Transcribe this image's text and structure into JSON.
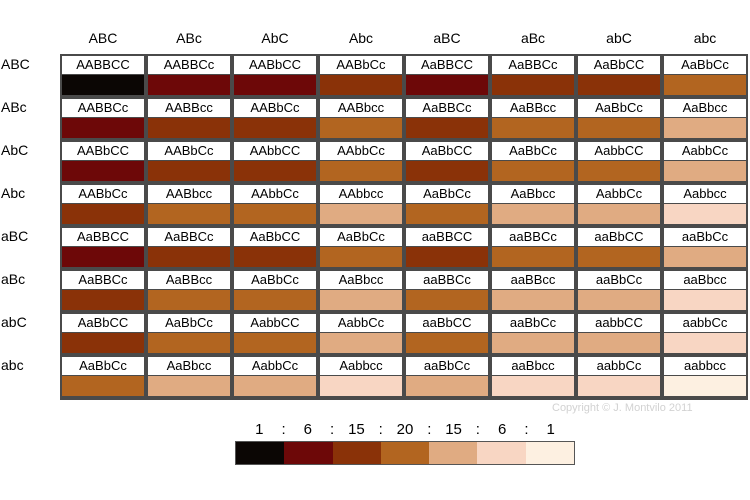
{
  "columns": [
    "ABC",
    "ABc",
    "AbC",
    "Abc",
    "aBC",
    "aBc",
    "abC",
    "abc"
  ],
  "rows": [
    "ABC",
    "ABc",
    "AbC",
    "Abc",
    "aBC",
    "aBc",
    "abC",
    "abc"
  ],
  "colors": {
    "c0": "#0b0604",
    "c1": "#6d0808",
    "c2": "#8a3208",
    "c3": "#b26520",
    "c4": "#e0ab82",
    "c5": "#f8d6c3",
    "c6": "#fdf0e1"
  },
  "grid": [
    [
      {
        "genotype": "AABBCC",
        "dominant": 6
      },
      {
        "genotype": "AABBCc",
        "dominant": 5
      },
      {
        "genotype": "AABbCC",
        "dominant": 5
      },
      {
        "genotype": "AABbCc",
        "dominant": 4
      },
      {
        "genotype": "AaBBCC",
        "dominant": 5
      },
      {
        "genotype": "AaBBCc",
        "dominant": 4
      },
      {
        "genotype": "AaBbCC",
        "dominant": 4
      },
      {
        "genotype": "AaBbCc",
        "dominant": 3
      }
    ],
    [
      {
        "genotype": "AABBCc",
        "dominant": 5
      },
      {
        "genotype": "AABBcc",
        "dominant": 4
      },
      {
        "genotype": "AABbCc",
        "dominant": 4
      },
      {
        "genotype": "AABbcc",
        "dominant": 3
      },
      {
        "genotype": "AaBBCc",
        "dominant": 4
      },
      {
        "genotype": "AaBBcc",
        "dominant": 3
      },
      {
        "genotype": "AaBbCc",
        "dominant": 3
      },
      {
        "genotype": "AaBbcc",
        "dominant": 2
      }
    ],
    [
      {
        "genotype": "AABbCC",
        "dominant": 5
      },
      {
        "genotype": "AABbCc",
        "dominant": 4
      },
      {
        "genotype": "AAbbCC",
        "dominant": 4
      },
      {
        "genotype": "AAbbCc",
        "dominant": 3
      },
      {
        "genotype": "AaBbCC",
        "dominant": 4
      },
      {
        "genotype": "AaBbCc",
        "dominant": 3
      },
      {
        "genotype": "AabbCC",
        "dominant": 3
      },
      {
        "genotype": "AabbCc",
        "dominant": 2
      }
    ],
    [
      {
        "genotype": "AABbCc",
        "dominant": 4
      },
      {
        "genotype": "AABbcc",
        "dominant": 3
      },
      {
        "genotype": "AAbbCc",
        "dominant": 3
      },
      {
        "genotype": "AAbbcc",
        "dominant": 2
      },
      {
        "genotype": "AaBbCc",
        "dominant": 3
      },
      {
        "genotype": "AaBbcc",
        "dominant": 2
      },
      {
        "genotype": "AabbCc",
        "dominant": 2
      },
      {
        "genotype": "Aabbcc",
        "dominant": 1
      }
    ],
    [
      {
        "genotype": "AaBBCC",
        "dominant": 5
      },
      {
        "genotype": "AaBBCc",
        "dominant": 4
      },
      {
        "genotype": "AaBbCC",
        "dominant": 4
      },
      {
        "genotype": "AaBbCc",
        "dominant": 3
      },
      {
        "genotype": "aaBBCC",
        "dominant": 4
      },
      {
        "genotype": "aaBBCc",
        "dominant": 3
      },
      {
        "genotype": "aaBbCC",
        "dominant": 3
      },
      {
        "genotype": "aaBbCc",
        "dominant": 2
      }
    ],
    [
      {
        "genotype": "AaBBCc",
        "dominant": 4
      },
      {
        "genotype": "AaBBcc",
        "dominant": 3
      },
      {
        "genotype": "AaBbCc",
        "dominant": 3
      },
      {
        "genotype": "AaBbcc",
        "dominant": 2
      },
      {
        "genotype": "aaBBCc",
        "dominant": 3
      },
      {
        "genotype": "aaBBcc",
        "dominant": 2
      },
      {
        "genotype": "aaBbCc",
        "dominant": 2
      },
      {
        "genotype": "aaBbcc",
        "dominant": 1
      }
    ],
    [
      {
        "genotype": "AaBbCC",
        "dominant": 4
      },
      {
        "genotype": "AaBbCc",
        "dominant": 3
      },
      {
        "genotype": "AabbCC",
        "dominant": 3
      },
      {
        "genotype": "AabbCc",
        "dominant": 2
      },
      {
        "genotype": "aaBbCC",
        "dominant": 3
      },
      {
        "genotype": "aaBbCc",
        "dominant": 2
      },
      {
        "genotype": "aabbCC",
        "dominant": 2
      },
      {
        "genotype": "aabbCc",
        "dominant": 1
      }
    ],
    [
      {
        "genotype": "AaBbCc",
        "dominant": 3
      },
      {
        "genotype": "AaBbcc",
        "dominant": 2
      },
      {
        "genotype": "AabbCc",
        "dominant": 2
      },
      {
        "genotype": "Aabbcc",
        "dominant": 1
      },
      {
        "genotype": "aaBbCc",
        "dominant": 2
      },
      {
        "genotype": "aaBbcc",
        "dominant": 1
      },
      {
        "genotype": "aabbCc",
        "dominant": 1
      },
      {
        "genotype": "aabbcc",
        "dominant": 0
      }
    ]
  ],
  "ratio": [
    "1",
    "6",
    "15",
    "20",
    "15",
    "6",
    "1"
  ],
  "ratio_separator": ":",
  "copyright": "Copyright © J. Montvilo 2011"
}
